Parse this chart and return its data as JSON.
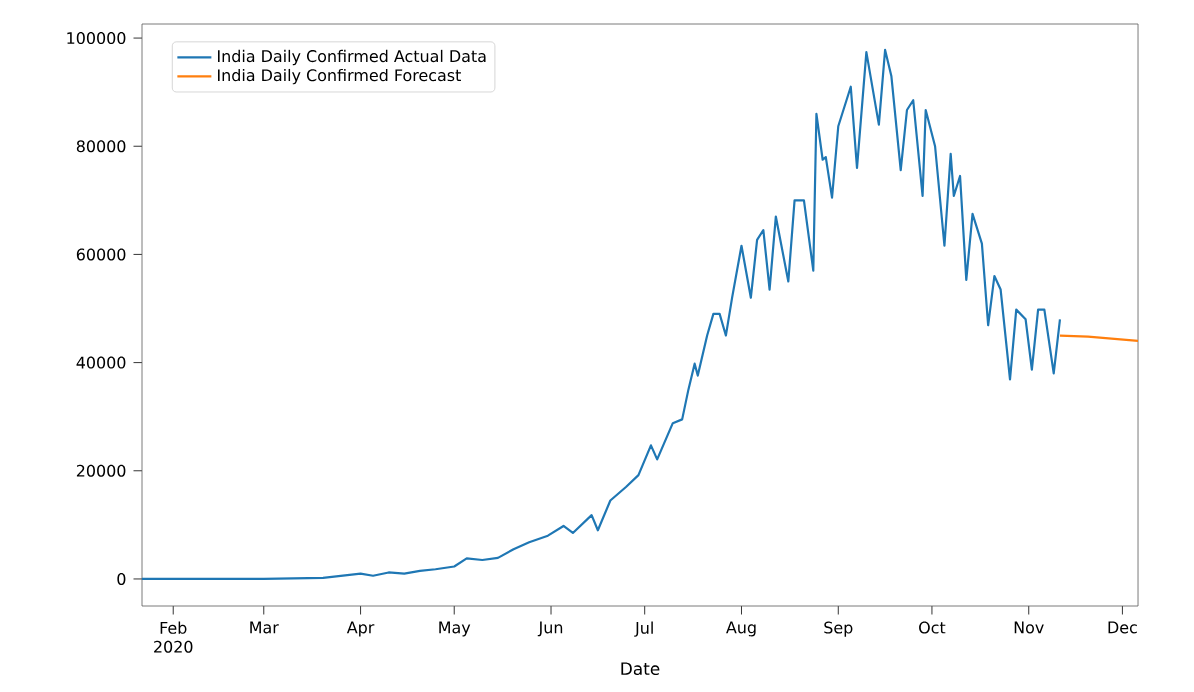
{
  "chart_data": {
    "type": "line",
    "xlabel": "Date",
    "legend": "top left",
    "grid": false,
    "line_style": "solid",
    "marker": "none",
    "xlim": [
      "2020-01-22",
      "2020-12-06"
    ],
    "ylim": [
      -5000,
      102600
    ],
    "xticks": [
      {
        "value": "2020-02-01",
        "label": "Feb 2020"
      },
      {
        "value": "2020-03-01",
        "label": "Mar"
      },
      {
        "value": "2020-04-01",
        "label": "Apr"
      },
      {
        "value": "2020-05-01",
        "label": "May"
      },
      {
        "value": "2020-06-01",
        "label": "Jun"
      },
      {
        "value": "2020-07-01",
        "label": "Jul"
      },
      {
        "value": "2020-08-01",
        "label": "Aug"
      },
      {
        "value": "2020-09-01",
        "label": "Sep"
      },
      {
        "value": "2020-10-01",
        "label": "Oct"
      },
      {
        "value": "2020-11-01",
        "label": "Nov"
      },
      {
        "value": "2020-12-01",
        "label": "Dec"
      }
    ],
    "yticks": [
      0,
      20000,
      40000,
      60000,
      80000,
      100000
    ],
    "series": [
      {
        "name": "India Daily Confirmed Actual Data",
        "color": "#1f77b4",
        "x": [
          "2020-01-22",
          "2020-03-01",
          "2020-03-20",
          "2020-04-01",
          "2020-04-05",
          "2020-04-10",
          "2020-04-15",
          "2020-04-20",
          "2020-04-25",
          "2020-05-01",
          "2020-05-05",
          "2020-05-10",
          "2020-05-15",
          "2020-05-20",
          "2020-05-25",
          "2020-05-31",
          "2020-06-05",
          "2020-06-08",
          "2020-06-14",
          "2020-06-16",
          "2020-06-20",
          "2020-06-25",
          "2020-06-29",
          "2020-07-03",
          "2020-07-05",
          "2020-07-10",
          "2020-07-13",
          "2020-07-15",
          "2020-07-17",
          "2020-07-18",
          "2020-07-21",
          "2020-07-23",
          "2020-07-25",
          "2020-07-27",
          "2020-07-29",
          "2020-08-01",
          "2020-08-04",
          "2020-08-06",
          "2020-08-08",
          "2020-08-10",
          "2020-08-12",
          "2020-08-16",
          "2020-08-18",
          "2020-08-21",
          "2020-08-24",
          "2020-08-25",
          "2020-08-27",
          "2020-08-28",
          "2020-08-30",
          "2020-09-01",
          "2020-09-05",
          "2020-09-07",
          "2020-09-10",
          "2020-09-14",
          "2020-09-16",
          "2020-09-18",
          "2020-09-21",
          "2020-09-23",
          "2020-09-25",
          "2020-09-28",
          "2020-09-29",
          "2020-10-02",
          "2020-10-05",
          "2020-10-07",
          "2020-10-08",
          "2020-10-10",
          "2020-10-12",
          "2020-10-14",
          "2020-10-17",
          "2020-10-19",
          "2020-10-21",
          "2020-10-23",
          "2020-10-26",
          "2020-10-28",
          "2020-10-31",
          "2020-11-02",
          "2020-11-04",
          "2020-11-06",
          "2020-11-09",
          "2020-11-11"
        ],
        "values": [
          0,
          0,
          200,
          1000,
          600,
          1200,
          1000,
          1500,
          1800,
          2300,
          3800,
          3500,
          3900,
          5500,
          6800,
          8000,
          9800,
          8500,
          11800,
          9000,
          14500,
          17000,
          19200,
          24700,
          22100,
          28800,
          29500,
          35000,
          39800,
          37600,
          45000,
          49000,
          49000,
          45000,
          52000,
          61600,
          52000,
          62700,
          64500,
          53500,
          67000,
          55000,
          70000,
          70000,
          57000,
          86000,
          77500,
          78000,
          70500,
          83700,
          91000,
          76000,
          97400,
          84000,
          97800,
          93000,
          75600,
          86700,
          88500,
          70800,
          86700,
          80000,
          61600,
          78600,
          70800,
          74500,
          55300,
          67500,
          62000,
          46900,
          56000,
          53500,
          36900,
          49800,
          48000,
          38700,
          49800,
          49800,
          38000,
          48000
        ]
      },
      {
        "name": "India Daily Confirmed Forecast",
        "color": "#ff7f0e",
        "x": [
          "2020-11-11",
          "2020-11-20",
          "2020-12-06"
        ],
        "values": [
          45000,
          44800,
          44000
        ]
      }
    ]
  }
}
